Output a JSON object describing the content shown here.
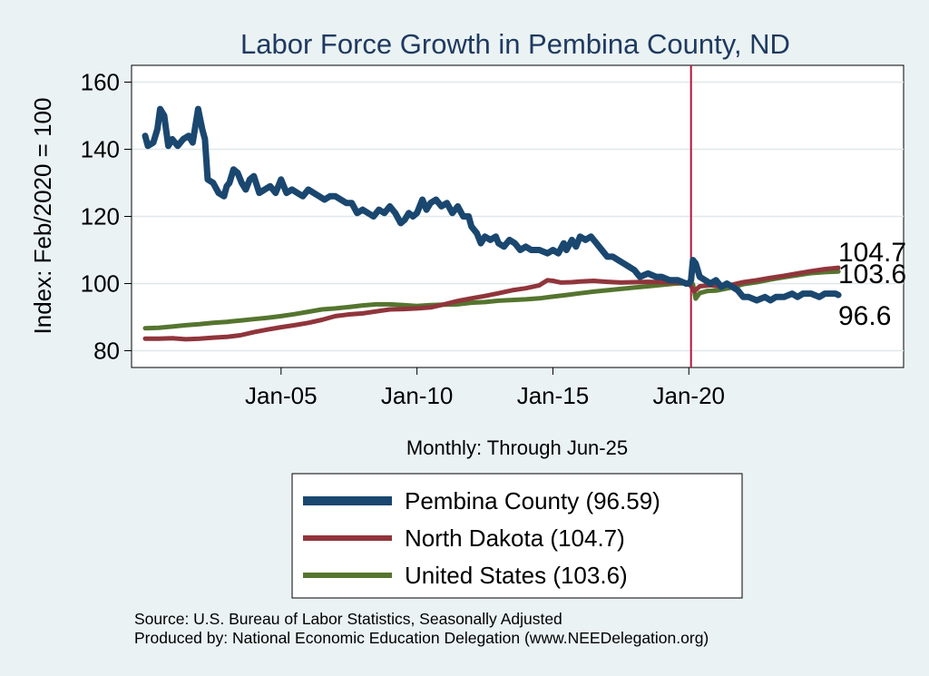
{
  "chart_data": {
    "type": "line",
    "title": "Labor Force Growth in Pembina  County, ND",
    "ylabel": "Index: Feb/2020 = 100",
    "xlabel": "Monthly: Through Jun-25",
    "ylim": [
      75,
      165
    ],
    "xlim": [
      1999.5,
      2027.9
    ],
    "yticks": [
      80,
      100,
      120,
      140,
      160
    ],
    "xticks": [
      {
        "value": 2005.0,
        "label": "Jan-05"
      },
      {
        "value": 2010.0,
        "label": "Jan-10"
      },
      {
        "value": 2015.0,
        "label": "Jan-15"
      },
      {
        "value": 2020.0,
        "label": "Jan-20"
      }
    ],
    "reference_line": {
      "x": 2020.08,
      "color": "#b3153a"
    },
    "series": [
      {
        "name": "Pembina  County",
        "legend": "Pembina  County (96.59)",
        "end_label": "96.6",
        "color": "#1a476f",
        "width": 7,
        "points": [
          [
            2000.0,
            144
          ],
          [
            2000.1,
            141
          ],
          [
            2000.3,
            142
          ],
          [
            2000.45,
            146
          ],
          [
            2000.55,
            152
          ],
          [
            2000.7,
            150
          ],
          [
            2000.85,
            141
          ],
          [
            2001.0,
            143
          ],
          [
            2001.2,
            141
          ],
          [
            2001.4,
            143
          ],
          [
            2001.6,
            144
          ],
          [
            2001.75,
            142
          ],
          [
            2001.85,
            147
          ],
          [
            2001.95,
            152
          ],
          [
            2002.1,
            146
          ],
          [
            2002.2,
            143
          ],
          [
            2002.3,
            131
          ],
          [
            2002.5,
            130
          ],
          [
            2002.7,
            127
          ],
          [
            2002.9,
            126
          ],
          [
            2003.0,
            129
          ],
          [
            2003.1,
            130
          ],
          [
            2003.25,
            134
          ],
          [
            2003.4,
            133
          ],
          [
            2003.55,
            130
          ],
          [
            2003.7,
            128
          ],
          [
            2003.85,
            131
          ],
          [
            2004.0,
            132
          ],
          [
            2004.2,
            127
          ],
          [
            2004.4,
            128
          ],
          [
            2004.6,
            129
          ],
          [
            2004.8,
            127
          ],
          [
            2005.0,
            131
          ],
          [
            2005.2,
            127
          ],
          [
            2005.4,
            128
          ],
          [
            2005.6,
            127
          ],
          [
            2005.8,
            126
          ],
          [
            2006.0,
            128
          ],
          [
            2006.2,
            127
          ],
          [
            2006.4,
            126
          ],
          [
            2006.6,
            125
          ],
          [
            2006.8,
            126
          ],
          [
            2007.0,
            126
          ],
          [
            2007.2,
            125
          ],
          [
            2007.4,
            124
          ],
          [
            2007.6,
            124
          ],
          [
            2007.8,
            121
          ],
          [
            2008.0,
            122
          ],
          [
            2008.2,
            121
          ],
          [
            2008.4,
            120
          ],
          [
            2008.6,
            122
          ],
          [
            2008.8,
            121
          ],
          [
            2009.0,
            123
          ],
          [
            2009.2,
            121
          ],
          [
            2009.4,
            118
          ],
          [
            2009.55,
            119
          ],
          [
            2009.7,
            121
          ],
          [
            2009.85,
            120
          ],
          [
            2010.0,
            121
          ],
          [
            2010.2,
            125
          ],
          [
            2010.35,
            122
          ],
          [
            2010.5,
            124
          ],
          [
            2010.7,
            125
          ],
          [
            2010.9,
            123
          ],
          [
            2011.1,
            124
          ],
          [
            2011.3,
            121
          ],
          [
            2011.5,
            123
          ],
          [
            2011.7,
            120
          ],
          [
            2011.9,
            120
          ],
          [
            2012.0,
            117
          ],
          [
            2012.2,
            115
          ],
          [
            2012.35,
            112
          ],
          [
            2012.5,
            114
          ],
          [
            2012.7,
            113
          ],
          [
            2012.9,
            114
          ],
          [
            2013.0,
            112
          ],
          [
            2013.2,
            111
          ],
          [
            2013.4,
            113
          ],
          [
            2013.6,
            112
          ],
          [
            2013.8,
            110
          ],
          [
            2014.0,
            111
          ],
          [
            2014.2,
            110
          ],
          [
            2014.5,
            110
          ],
          [
            2014.8,
            109
          ],
          [
            2015.0,
            110
          ],
          [
            2015.2,
            109
          ],
          [
            2015.4,
            112
          ],
          [
            2015.5,
            110
          ],
          [
            2015.7,
            113
          ],
          [
            2015.85,
            111
          ],
          [
            2016.0,
            114
          ],
          [
            2016.2,
            113
          ],
          [
            2016.4,
            114
          ],
          [
            2016.6,
            112
          ],
          [
            2016.8,
            110
          ],
          [
            2017.0,
            108
          ],
          [
            2017.2,
            108
          ],
          [
            2017.4,
            107
          ],
          [
            2017.6,
            106
          ],
          [
            2017.8,
            105
          ],
          [
            2018.0,
            104
          ],
          [
            2018.2,
            102
          ],
          [
            2018.5,
            103
          ],
          [
            2018.8,
            102
          ],
          [
            2019.0,
            102
          ],
          [
            2019.3,
            101
          ],
          [
            2019.6,
            101
          ],
          [
            2019.9,
            100
          ],
          [
            2020.0,
            100
          ],
          [
            2020.08,
            101
          ],
          [
            2020.15,
            107
          ],
          [
            2020.25,
            106
          ],
          [
            2020.4,
            102
          ],
          [
            2020.6,
            101
          ],
          [
            2020.8,
            100
          ],
          [
            2021.0,
            101
          ],
          [
            2021.2,
            99
          ],
          [
            2021.4,
            100
          ],
          [
            2021.6,
            99
          ],
          [
            2021.8,
            98
          ],
          [
            2022.0,
            96
          ],
          [
            2022.2,
            96
          ],
          [
            2022.5,
            95
          ],
          [
            2022.8,
            96
          ],
          [
            2023.0,
            95
          ],
          [
            2023.2,
            96
          ],
          [
            2023.5,
            96
          ],
          [
            2023.8,
            97
          ],
          [
            2024.0,
            96
          ],
          [
            2024.2,
            97
          ],
          [
            2024.5,
            97
          ],
          [
            2024.8,
            96
          ],
          [
            2025.0,
            97
          ],
          [
            2025.2,
            97
          ],
          [
            2025.4,
            97
          ],
          [
            2025.5,
            96.6
          ]
        ]
      },
      {
        "name": "North Dakota",
        "legend": "North Dakota (104.7)",
        "end_label": "104.7",
        "color": "#90353b",
        "width": 5,
        "points": [
          [
            2000.0,
            83.6
          ],
          [
            2000.5,
            83.6
          ],
          [
            2001.0,
            83.7
          ],
          [
            2001.5,
            83.4
          ],
          [
            2002.0,
            83.6
          ],
          [
            2002.5,
            83.9
          ],
          [
            2003.0,
            84.1
          ],
          [
            2003.5,
            84.6
          ],
          [
            2004.0,
            85.5
          ],
          [
            2004.5,
            86.3
          ],
          [
            2005.0,
            87.0
          ],
          [
            2005.5,
            87.6
          ],
          [
            2006.0,
            88.3
          ],
          [
            2006.5,
            89.2
          ],
          [
            2007.0,
            90.3
          ],
          [
            2007.5,
            90.8
          ],
          [
            2008.0,
            91.1
          ],
          [
            2008.5,
            91.7
          ],
          [
            2009.0,
            92.3
          ],
          [
            2009.5,
            92.4
          ],
          [
            2010.0,
            92.6
          ],
          [
            2010.5,
            92.9
          ],
          [
            2011.0,
            93.8
          ],
          [
            2011.5,
            94.8
          ],
          [
            2012.0,
            95.6
          ],
          [
            2012.5,
            96.3
          ],
          [
            2013.0,
            97.1
          ],
          [
            2013.5,
            98.0
          ],
          [
            2014.0,
            98.6
          ],
          [
            2014.5,
            99.5
          ],
          [
            2014.8,
            101.0
          ],
          [
            2015.0,
            100.8
          ],
          [
            2015.3,
            100.3
          ],
          [
            2015.7,
            100.4
          ],
          [
            2016.0,
            100.6
          ],
          [
            2016.5,
            100.8
          ],
          [
            2017.0,
            100.5
          ],
          [
            2017.5,
            100.3
          ],
          [
            2018.0,
            100.4
          ],
          [
            2018.5,
            100.5
          ],
          [
            2019.0,
            100.4
          ],
          [
            2019.5,
            100.3
          ],
          [
            2020.0,
            100.2
          ],
          [
            2020.2,
            97.7
          ],
          [
            2020.4,
            99.2
          ],
          [
            2020.8,
            99.5
          ],
          [
            2021.0,
            99.3
          ],
          [
            2021.5,
            99.5
          ],
          [
            2022.0,
            100.4
          ],
          [
            2022.5,
            101.0
          ],
          [
            2023.0,
            101.7
          ],
          [
            2023.5,
            102.3
          ],
          [
            2024.0,
            103.0
          ],
          [
            2024.5,
            103.7
          ],
          [
            2025.0,
            104.3
          ],
          [
            2025.5,
            104.7
          ]
        ]
      },
      {
        "name": "United States",
        "legend": "United States (103.6)",
        "end_label": "103.6",
        "color": "#55752f",
        "width": 5,
        "points": [
          [
            2000.0,
            86.7
          ],
          [
            2000.5,
            86.8
          ],
          [
            2001.0,
            87.2
          ],
          [
            2001.5,
            87.6
          ],
          [
            2002.0,
            87.9
          ],
          [
            2002.5,
            88.3
          ],
          [
            2003.0,
            88.6
          ],
          [
            2003.5,
            89.0
          ],
          [
            2004.0,
            89.4
          ],
          [
            2004.5,
            89.8
          ],
          [
            2005.0,
            90.3
          ],
          [
            2005.5,
            90.9
          ],
          [
            2006.0,
            91.6
          ],
          [
            2006.5,
            92.3
          ],
          [
            2007.0,
            92.6
          ],
          [
            2007.5,
            93.0
          ],
          [
            2008.0,
            93.5
          ],
          [
            2008.5,
            93.8
          ],
          [
            2009.0,
            93.8
          ],
          [
            2009.5,
            93.6
          ],
          [
            2010.0,
            93.3
          ],
          [
            2010.5,
            93.6
          ],
          [
            2011.0,
            93.7
          ],
          [
            2011.5,
            93.8
          ],
          [
            2012.0,
            94.3
          ],
          [
            2012.5,
            94.5
          ],
          [
            2013.0,
            94.9
          ],
          [
            2013.5,
            95.1
          ],
          [
            2014.0,
            95.3
          ],
          [
            2014.5,
            95.6
          ],
          [
            2015.0,
            96.1
          ],
          [
            2015.5,
            96.6
          ],
          [
            2016.0,
            97.1
          ],
          [
            2016.5,
            97.6
          ],
          [
            2017.0,
            98.0
          ],
          [
            2017.5,
            98.4
          ],
          [
            2018.0,
            98.8
          ],
          [
            2018.5,
            99.2
          ],
          [
            2019.0,
            99.6
          ],
          [
            2019.5,
            100.0
          ],
          [
            2020.0,
            100.1
          ],
          [
            2020.15,
            99.8
          ],
          [
            2020.25,
            95.5
          ],
          [
            2020.4,
            97.2
          ],
          [
            2020.7,
            97.8
          ],
          [
            2021.0,
            97.9
          ],
          [
            2021.5,
            98.7
          ],
          [
            2022.0,
            99.8
          ],
          [
            2022.5,
            100.4
          ],
          [
            2023.0,
            101.2
          ],
          [
            2023.5,
            101.9
          ],
          [
            2024.0,
            102.5
          ],
          [
            2024.5,
            103.1
          ],
          [
            2025.0,
            103.4
          ],
          [
            2025.5,
            103.6
          ]
        ]
      }
    ]
  },
  "source": {
    "line1": "Source: U.S. Bureau of Labor Statistics, Seasonally Adjusted",
    "line2": "Produced by: National Economic Education Delegation (www.NEEDelegation.org)"
  }
}
